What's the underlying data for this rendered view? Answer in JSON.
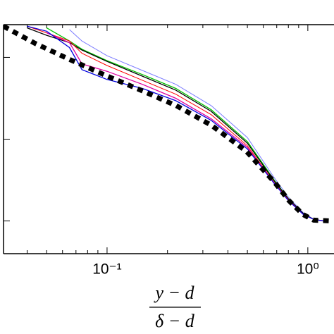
{
  "chart_data": {
    "type": "line",
    "xscale": "log",
    "x_label_numerator": "y − d",
    "x_label_denominator": "δ − d",
    "x": [
      0.04,
      0.05,
      0.065,
      0.075,
      0.1,
      0.15,
      0.22,
      0.33,
      0.5,
      0.68,
      0.8,
      0.95,
      1.07,
      1.2
    ],
    "xlim": [
      0.0305,
      1.35
    ],
    "xticks": [
      {
        "value": 0.1,
        "label": "10⁻¹"
      },
      {
        "value": 1,
        "label": "10⁰"
      }
    ],
    "ylim": [
      -0.4,
      2.4
    ],
    "yticks": [
      0,
      1,
      2
    ],
    "series": [
      {
        "color": "#7b7bff",
        "width": 1,
        "values": [
          null,
          null,
          2.34,
          2.2,
          2.02,
          1.84,
          1.67,
          1.41,
          1.02,
          0.53,
          0.29,
          0.1,
          0.02,
          0
        ]
      },
      {
        "color": "#00c000",
        "width": 1.3,
        "values": [
          null,
          2.36,
          2.2,
          2.1,
          1.96,
          1.79,
          1.62,
          1.36,
          0.97,
          0.5,
          0.27,
          0.09,
          0.02,
          0
        ]
      },
      {
        "color": "#000000",
        "width": 1.3,
        "values": [
          2.36,
          2.27,
          2.18,
          2.09,
          1.95,
          1.77,
          1.6,
          1.34,
          0.95,
          0.49,
          0.27,
          0.09,
          0.02,
          0
        ]
      },
      {
        "color": "#ff0000",
        "width": 1,
        "values": [
          2.38,
          2.3,
          2.2,
          2.05,
          1.9,
          1.72,
          1.55,
          1.3,
          0.92,
          0.47,
          0.26,
          0.08,
          0.02,
          0
        ]
      },
      {
        "color": "#e000a0",
        "width": 1.3,
        "values": [
          null,
          2.3,
          2.18,
          1.92,
          1.83,
          1.67,
          1.5,
          1.25,
          0.9,
          0.46,
          0.25,
          0.08,
          0.02,
          0
        ]
      },
      {
        "color": "#0000e0",
        "width": 1.3,
        "values": [
          2.38,
          2.32,
          2.12,
          1.85,
          1.73,
          1.62,
          1.47,
          1.23,
          0.88,
          0.46,
          0.25,
          0.08,
          0.02,
          0
        ]
      }
    ],
    "reference": {
      "color": "#000000",
      "dashed": true,
      "x": [
        0.0305,
        0.0439,
        0.0657,
        0.0984,
        0.147,
        0.221,
        0.331,
        0.495,
        0.684,
        0.804,
        0.945,
        1.07,
        1.31
      ],
      "values": [
        2.38,
        2.17,
        1.97,
        1.78,
        1.6,
        1.41,
        1.17,
        0.85,
        0.47,
        0.25,
        0.08,
        0.01,
        0
      ]
    }
  }
}
